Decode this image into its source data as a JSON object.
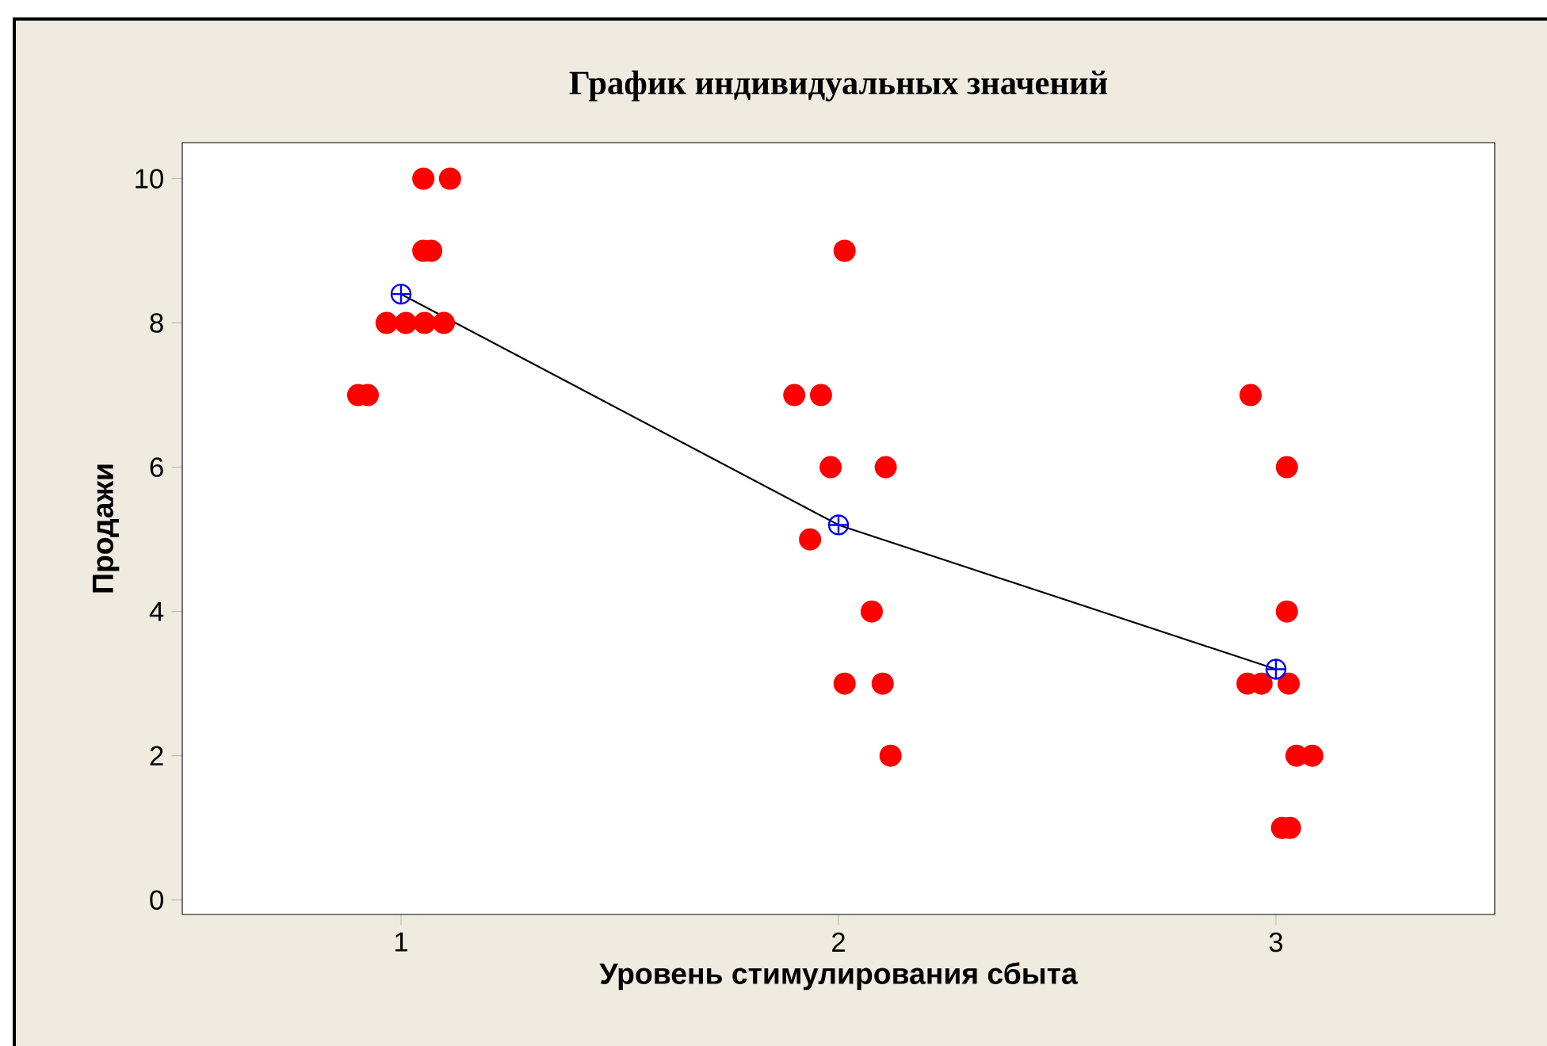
{
  "chart_data": {
    "type": "scatter",
    "title": "График индивидуальных значений",
    "xlabel": "Уровень стимулирования сбыта",
    "ylabel": "Продажи",
    "xlim": [
      0.5,
      3.5
    ],
    "xticks": [
      1,
      2,
      3
    ],
    "ylim": [
      -0.2,
      10.5
    ],
    "yticks": [
      0,
      2,
      4,
      6,
      8,
      10
    ],
    "series": [
      {
        "color": "#ff0000",
        "marker": "circle",
        "x": [
          0.902,
          0.924,
          0.967,
          1.011,
          1.054,
          1.098,
          1.051,
          1.069,
          1.051,
          1.112,
          2.014,
          1.899,
          1.96,
          1.982,
          2.108,
          1.935,
          2.076,
          2.014,
          2.101,
          2.119,
          2.942,
          3.025,
          3.025,
          2.935,
          2.967,
          3.029,
          3.047,
          3.083,
          3.014,
          3.032
        ],
        "values": [
          7,
          7,
          8,
          8,
          8,
          8,
          9,
          9,
          10,
          10,
          9,
          7,
          7,
          6,
          6,
          5,
          4,
          3,
          3,
          2,
          7,
          6,
          4,
          3,
          3,
          3,
          2,
          2,
          1,
          1
        ]
      },
      {
        "type": "line",
        "color": "#000000",
        "marker": "none",
        "x": [
          1,
          2,
          3
        ],
        "values": [
          8.4,
          5.2,
          3.2
        ]
      },
      {
        "color": "#0000ff",
        "marker": "cross",
        "x": [
          1,
          2,
          3
        ],
        "values": [
          8.4,
          5.2,
          3.2
        ]
      }
    ]
  }
}
